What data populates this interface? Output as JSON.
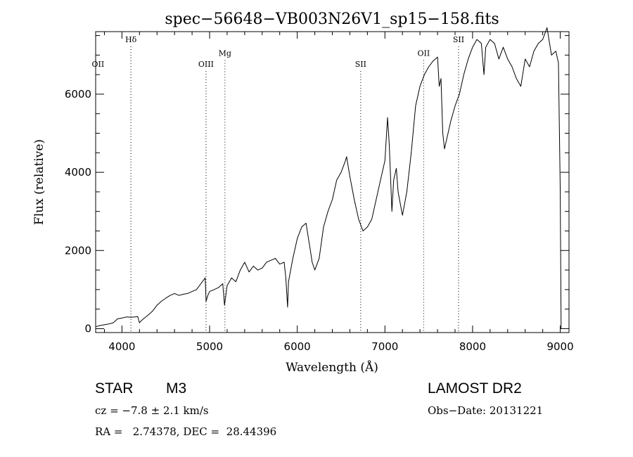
{
  "chart_data": {
    "type": "line",
    "title": "spec−56648−VB003N26V1_sp15−158.fits",
    "xlabel": "Wavelength (Å)",
    "ylabel": "Flux (relative)",
    "xlim": [
      3700,
      9100
    ],
    "ylim": [
      -100,
      7600
    ],
    "xticks": [
      4000,
      5000,
      6000,
      7000,
      8000,
      9000
    ],
    "yticks": [
      0,
      2000,
      4000,
      6000
    ],
    "grid": false,
    "series": [
      {
        "x": [
          3700,
          3750,
          3800,
          3850,
          3900,
          3950,
          4000,
          4050,
          4100,
          4150,
          4180,
          4200,
          4220,
          4250,
          4300,
          4350,
          4400,
          4450,
          4500,
          4550,
          4600,
          4650,
          4700,
          4750,
          4800,
          4850,
          4900,
          4950,
          4960,
          4980,
          5000,
          5050,
          5100,
          5150,
          5170,
          5200,
          5250,
          5300,
          5350,
          5400,
          5450,
          5500,
          5550,
          5600,
          5650,
          5700,
          5750,
          5800,
          5850,
          5870,
          5890,
          5900,
          5950,
          6000,
          6050,
          6100,
          6150,
          6170,
          6200,
          6250,
          6300,
          6350,
          6400,
          6450,
          6500,
          6550,
          6563,
          6600,
          6650,
          6700,
          6750,
          6800,
          6850,
          6900,
          6950,
          7000,
          7030,
          7050,
          7080,
          7100,
          7130,
          7150,
          7200,
          7250,
          7300,
          7350,
          7400,
          7450,
          7500,
          7550,
          7600,
          7620,
          7640,
          7660,
          7680,
          7700,
          7750,
          7800,
          7850,
          7900,
          7950,
          8000,
          8050,
          8100,
          8130,
          8150,
          8200,
          8250,
          8300,
          8350,
          8400,
          8450,
          8500,
          8550,
          8600,
          8650,
          8700,
          8750,
          8800,
          8850,
          8900,
          8950,
          8980,
          9000,
          9010
        ],
        "y": [
          50,
          80,
          100,
          120,
          150,
          250,
          270,
          300,
          290,
          300,
          310,
          150,
          200,
          260,
          350,
          450,
          600,
          700,
          780,
          850,
          900,
          850,
          880,
          900,
          950,
          1000,
          1150,
          1300,
          700,
          850,
          950,
          1000,
          1050,
          1150,
          600,
          1100,
          1300,
          1200,
          1500,
          1700,
          1450,
          1600,
          1500,
          1550,
          1700,
          1750,
          1800,
          1650,
          1700,
          1300,
          550,
          1200,
          1800,
          2300,
          2600,
          2700,
          2000,
          1700,
          1500,
          1800,
          2600,
          3000,
          3300,
          3800,
          4000,
          4300,
          4400,
          3900,
          3300,
          2800,
          2500,
          2600,
          2800,
          3300,
          3800,
          4300,
          5400,
          4700,
          3000,
          3800,
          4100,
          3500,
          2900,
          3500,
          4500,
          5700,
          6200,
          6500,
          6700,
          6850,
          6950,
          6200,
          6400,
          5000,
          4600,
          4800,
          5300,
          5700,
          6000,
          6500,
          6900,
          7200,
          7400,
          7300,
          6500,
          7200,
          7400,
          7300,
          6900,
          7200,
          6900,
          6700,
          6400,
          6200,
          6900,
          6700,
          7100,
          7300,
          7400,
          7700,
          7000,
          7100,
          6800,
          3600,
          0
        ]
      }
    ],
    "annotations": [
      {
        "label": "OII",
        "x": 3727,
        "label_y": 6700
      },
      {
        "label": "Hδ",
        "x": 4102,
        "label_y": 7330
      },
      {
        "label": "OIII",
        "x": 4959,
        "label_y": 6700
      },
      {
        "label": "Mg",
        "x": 5175,
        "label_y": 6980
      },
      {
        "label": "SII",
        "x": 6724,
        "label_y": 6700
      },
      {
        "label": "OII",
        "x": 7442,
        "label_y": 6980
      },
      {
        "label": "SII",
        "x": 7840,
        "label_y": 7330
      }
    ]
  },
  "info": {
    "object_class": "STAR",
    "subclass": "M3",
    "survey": "LAMOST DR2",
    "redshift": "cz = −7.8 ± 2.1 km/s",
    "obs_date": "Obs−Date: 20131221",
    "coords": "RA =   2.74378, DEC =  28.44396"
  }
}
